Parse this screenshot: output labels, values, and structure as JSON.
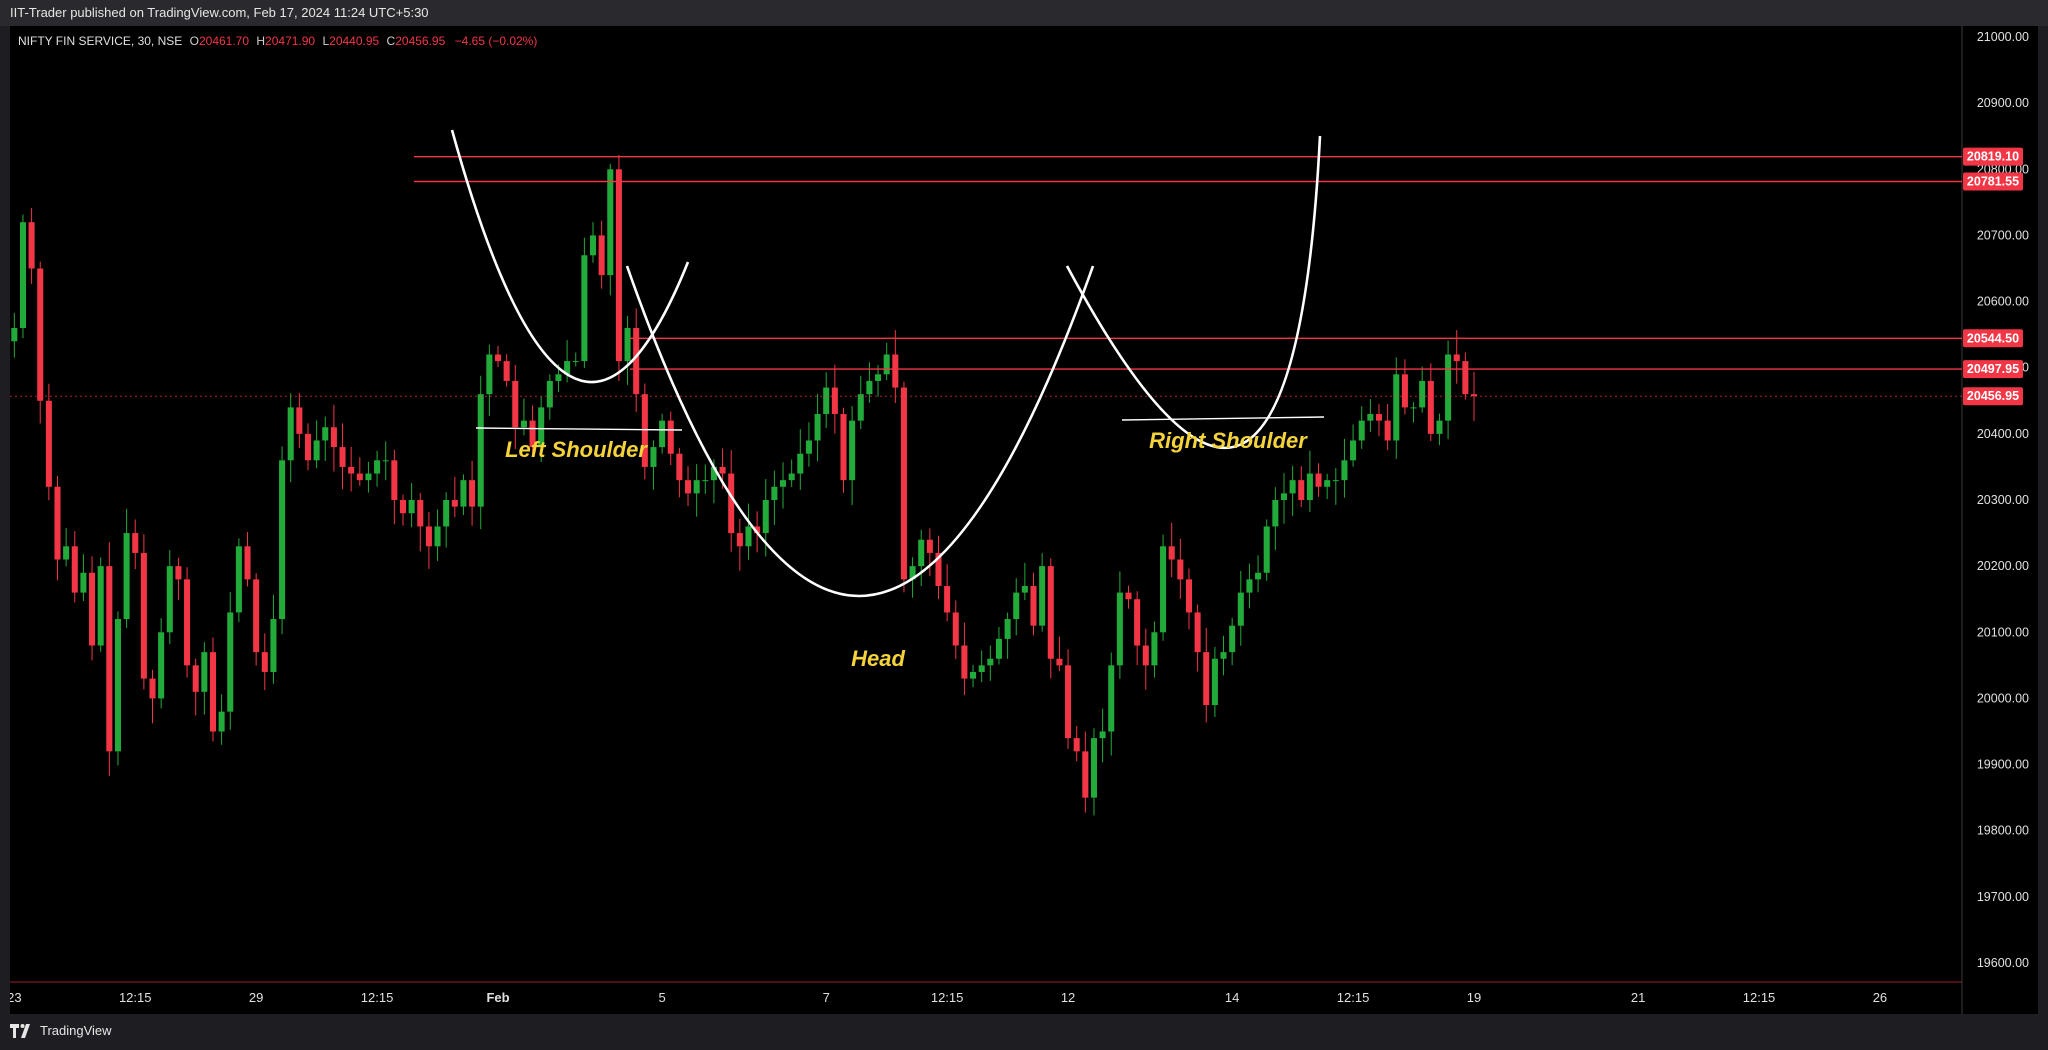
{
  "header": {
    "published": "IIT-Trader published on TradingView.com, Feb 17, 2024 11:24 UTC+5:30"
  },
  "footer": {
    "logo_text": "TradingView"
  },
  "legend": {
    "symbol": "NIFTY FIN SERVICE, 30, NSE",
    "o_label": "O",
    "o": "20461.70",
    "h_label": "H",
    "h": "20471.90",
    "l_label": "L",
    "l": "20440.95",
    "c_label": "C",
    "c": "20456.95",
    "change": "−4.65 (−0.02%)"
  },
  "chart_data": {
    "type": "candlestick",
    "symbol": "NIFTY FIN SERVICE",
    "interval": "30",
    "exchange": "NSE",
    "ylim": [
      19560,
      21060
    ],
    "y_ticks": [
      "21000.00",
      "20900.00",
      "20800.00",
      "20700.00",
      "20600.00",
      "20500.00",
      "20400.00",
      "20300.00",
      "20200.00",
      "20100.00",
      "20000.00",
      "19900.00",
      "19800.00",
      "19700.00",
      "19600.00"
    ],
    "x_ticks": [
      {
        "label": "23",
        "idx": 0
      },
      {
        "label": "12:15",
        "idx": 14
      },
      {
        "label": "29",
        "idx": 28
      },
      {
        "label": "12:15",
        "idx": 42
      },
      {
        "label": "Feb",
        "idx": 56
      },
      {
        "label": "5",
        "idx": 75
      },
      {
        "label": "7",
        "idx": 94
      },
      {
        "label": "12:15",
        "idx": 108
      },
      {
        "label": "12",
        "idx": 122
      },
      {
        "label": "14",
        "idx": 141
      },
      {
        "label": "12:15",
        "idx": 155
      },
      {
        "label": "19",
        "idx": 169
      },
      {
        "label": "21",
        "idx": 188
      },
      {
        "label": "12:15",
        "idx": 202
      },
      {
        "label": "26",
        "idx": 216
      }
    ],
    "total_slots": 226,
    "up_color": "#22ab3a",
    "down_color": "#f23645",
    "closes": [
      20560,
      20720,
      20650,
      20450,
      20320,
      20210,
      20230,
      20160,
      20190,
      20080,
      20200,
      19920,
      20120,
      20250,
      20220,
      20030,
      20000,
      20100,
      20200,
      20180,
      20050,
      20010,
      20070,
      19950,
      19980,
      20130,
      20230,
      20180,
      20070,
      20040,
      20120,
      20360,
      20440,
      20400,
      20360,
      20390,
      20410,
      20380,
      20350,
      20340,
      20330,
      20340,
      20360,
      20360,
      20300,
      20280,
      20300,
      20260,
      20230,
      20260,
      20300,
      20290,
      20330,
      20290,
      20460,
      20520,
      20510,
      20480,
      20410,
      20420,
      20380,
      20440,
      20480,
      20490,
      20510,
      20510,
      20670,
      20700,
      20640,
      20800,
      20510,
      20560,
      20460,
      20350,
      20380,
      20420,
      20370,
      20330,
      20310,
      20330,
      20330,
      20350,
      20340,
      20250,
      20230,
      20260,
      20250,
      20300,
      20320,
      20330,
      20340,
      20370,
      20390,
      20430,
      20470,
      20430,
      20330,
      20420,
      20460,
      20480,
      20490,
      20520,
      20470,
      20180,
      20200,
      20240,
      20220,
      20170,
      20130,
      20080,
      20030,
      20040,
      20050,
      20060,
      20090,
      20120,
      20160,
      20170,
      20110,
      20200,
      20060,
      20050,
      19940,
      19920,
      19850,
      19940,
      19950,
      20050,
      20160,
      20150,
      20080,
      20050,
      20100,
      20230,
      20210,
      20180,
      20130,
      20070,
      19990,
      20060,
      20070,
      20110,
      20160,
      20180,
      20190,
      20260,
      20300,
      20310,
      20330,
      20300,
      20340,
      20320,
      20330,
      20330,
      20360,
      20390,
      20420,
      20430,
      20420,
      20390,
      20490,
      20440,
      20440,
      20480,
      20400,
      20420,
      20520,
      20510,
      20460,
      20457
    ],
    "patterns": [
      {
        "text": "Left Shoulder"
      },
      {
        "text": "Head"
      },
      {
        "text": "Right Shoulder"
      }
    ],
    "levels": [
      {
        "label": "20819.10",
        "value": 20819.1,
        "color": "#f23645"
      },
      {
        "label": "20781.55",
        "value": 20781.55,
        "color": "#f23645"
      },
      {
        "label": "20544.50",
        "value": 20544.5,
        "color": "#f23645"
      },
      {
        "label": "20497.95",
        "value": 20497.95,
        "color": "#f23645"
      },
      {
        "label": "20456.95",
        "value": 20456.95,
        "color": "#f23645"
      }
    ],
    "colors": {
      "background": "#000000",
      "pattern_line": "#ffffff",
      "pattern_text": "#f5d33a",
      "axis_text": "#e0e0e0"
    }
  }
}
